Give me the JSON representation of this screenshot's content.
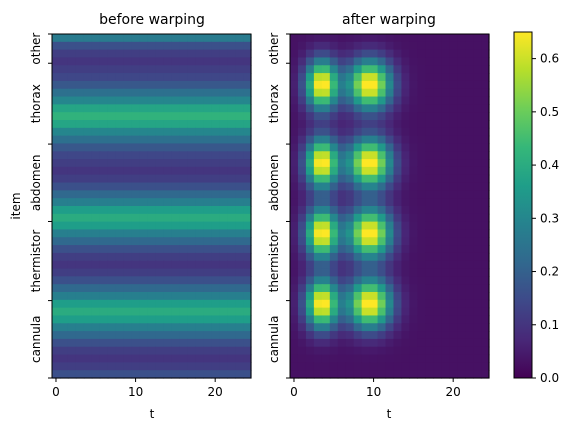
{
  "chart_data": [
    {
      "type": "heatmap",
      "title": "before warping",
      "xlabel": "t",
      "ylabel": "item",
      "x_ticks": [
        0,
        10,
        20
      ],
      "x_range": [
        -0.5,
        24.5
      ],
      "y_tick_labels": [
        "other",
        "thorax",
        "abdomen",
        "thermistor",
        "cannula"
      ],
      "row_profile": {
        "description_free": true,
        "rows": 44,
        "values": [
          0.27,
          0.16,
          0.12,
          0.1,
          0.12,
          0.14,
          0.18,
          0.24,
          0.3,
          0.38,
          0.42,
          0.38,
          0.3,
          0.24,
          0.18,
          0.14,
          0.12,
          0.1,
          0.12,
          0.16,
          0.22,
          0.28,
          0.36,
          0.4,
          0.36,
          0.28,
          0.22,
          0.16,
          0.12,
          0.1,
          0.12,
          0.16,
          0.22,
          0.28,
          0.36,
          0.4,
          0.36,
          0.28,
          0.22,
          0.16,
          0.12,
          0.1,
          0.12,
          0.16
        ]
      }
    },
    {
      "type": "heatmap",
      "title": "after warping",
      "xlabel": "t",
      "x_ticks": [
        0,
        10,
        20
      ],
      "x_range": [
        -0.5,
        24.5
      ],
      "y_tick_labels": [
        "other",
        "thorax",
        "abdomen",
        "thermistor",
        "cannula"
      ],
      "blob_rows": [
        6,
        16,
        25,
        34
      ],
      "blob_centers_t": [
        3.5,
        9.5
      ],
      "peak_value": 0.65
    }
  ],
  "colorbar": {
    "min": 0.0,
    "max": 0.65,
    "ticks": [
      "0.0",
      "0.1",
      "0.2",
      "0.3",
      "0.4",
      "0.5",
      "0.6"
    ]
  },
  "colors": {
    "viridis": [
      "#440154",
      "#482878",
      "#3e4989",
      "#31688e",
      "#26828e",
      "#1f9e89",
      "#35b779",
      "#6ece58",
      "#b5de2b",
      "#fde725"
    ]
  }
}
